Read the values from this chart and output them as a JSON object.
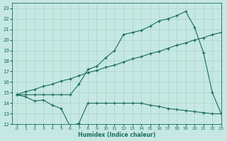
{
  "xlabel": "Humidex (Indice chaleur)",
  "bg_color": "#c5e8e2",
  "grid_color": "#aad4cc",
  "line_color": "#1a6b60",
  "xlim": [
    -0.5,
    23
  ],
  "ylim": [
    12,
    23.5
  ],
  "xticks": [
    0,
    1,
    2,
    3,
    4,
    5,
    6,
    7,
    8,
    9,
    10,
    11,
    12,
    13,
    14,
    15,
    16,
    17,
    18,
    19,
    20,
    21,
    22,
    23
  ],
  "yticks": [
    12,
    13,
    14,
    15,
    16,
    17,
    18,
    19,
    20,
    21,
    22,
    23
  ],
  "line1_x": [
    0,
    1,
    2,
    3,
    4,
    5,
    6,
    7,
    8,
    9,
    10,
    11,
    12,
    13,
    14,
    15,
    16,
    17,
    18,
    19,
    20,
    21,
    22,
    23
  ],
  "line1_y": [
    14.8,
    14.6,
    14.2,
    14.3,
    13.8,
    13.5,
    11.8,
    12.1,
    14.0,
    14.0,
    14.0,
    14.0,
    14.0,
    14.0,
    14.0,
    13.8,
    13.7,
    13.5,
    13.4,
    13.3,
    13.2,
    13.1,
    13.0,
    13.0
  ],
  "line2_x": [
    0,
    1,
    2,
    3,
    4,
    5,
    6,
    7,
    8,
    9,
    10,
    11,
    12,
    13,
    14,
    15,
    16,
    17,
    18,
    19,
    20,
    21,
    22,
    23
  ],
  "line2_y": [
    14.8,
    15.1,
    15.3,
    15.6,
    15.8,
    16.1,
    16.3,
    16.6,
    16.9,
    17.1,
    17.4,
    17.6,
    17.9,
    18.2,
    18.4,
    18.7,
    18.9,
    19.2,
    19.5,
    19.7,
    20.0,
    20.2,
    20.5,
    20.7
  ],
  "line3_x": [
    0,
    1,
    2,
    3,
    4,
    5,
    6,
    7,
    8,
    9,
    10,
    11,
    12,
    13,
    14,
    15,
    16,
    17,
    18,
    19,
    20,
    21,
    22,
    23
  ],
  "line3_y": [
    14.8,
    14.8,
    14.8,
    14.8,
    14.8,
    14.8,
    14.8,
    15.8,
    17.2,
    17.5,
    18.3,
    19.0,
    20.5,
    20.7,
    20.9,
    21.3,
    21.8,
    22.0,
    22.3,
    22.7,
    21.2,
    18.8,
    15.0,
    13.0
  ]
}
